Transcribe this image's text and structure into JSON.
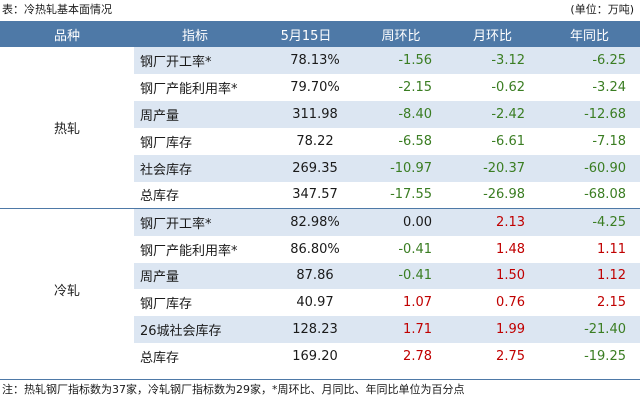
{
  "title": "表：冷热轧基本面情况",
  "unit": "(单位：万吨)",
  "headers": [
    "品种",
    "指标",
    "5月15日",
    "周环比",
    "月环比",
    "年同比"
  ],
  "groups": [
    {
      "variety": "热轧",
      "rows": [
        {
          "indicator": "钢厂开工率*",
          "value": "78.13%",
          "wow": "-1.56",
          "mom": "-3.12",
          "yoy": "-6.25"
        },
        {
          "indicator": "钢厂产能利用率*",
          "value": "79.70%",
          "wow": "-2.15",
          "mom": "-0.62",
          "yoy": "-3.24"
        },
        {
          "indicator": "周产量",
          "value": "311.98",
          "wow": "-8.40",
          "mom": "-2.42",
          "yoy": "-12.68"
        },
        {
          "indicator": "钢厂库存",
          "value": "78.22",
          "wow": "-6.58",
          "mom": "-6.61",
          "yoy": "-7.18"
        },
        {
          "indicator": "社会库存",
          "value": "269.35",
          "wow": "-10.97",
          "mom": "-20.37",
          "yoy": "-60.90"
        },
        {
          "indicator": "总库存",
          "value": "347.57",
          "wow": "-17.55",
          "mom": "-26.98",
          "yoy": "-68.08"
        }
      ]
    },
    {
      "variety": "冷轧",
      "rows": [
        {
          "indicator": "钢厂开工率*",
          "value": "82.98%",
          "wow": "0.00",
          "mom": "2.13",
          "yoy": "-4.25"
        },
        {
          "indicator": "钢厂产能利用率*",
          "value": "86.80%",
          "wow": "-0.41",
          "mom": "1.48",
          "yoy": "1.11"
        },
        {
          "indicator": "周产量",
          "value": "87.86",
          "wow": "-0.41",
          "mom": "1.50",
          "yoy": "1.12"
        },
        {
          "indicator": "钢厂库存",
          "value": "40.97",
          "wow": "1.07",
          "mom": "0.76",
          "yoy": "2.15"
        },
        {
          "indicator": "26城社会库存",
          "value": "128.23",
          "wow": "1.71",
          "mom": "1.99",
          "yoy": "-21.40"
        },
        {
          "indicator": "总库存",
          "value": "169.20",
          "wow": "2.78",
          "mom": "2.75",
          "yoy": "-19.25"
        }
      ]
    }
  ],
  "footnote": "注：热轧钢厂指标数为37家，冷轧钢厂指标数为29家，*周环比、月同比、年同比单位为百分点",
  "colors": {
    "header_bg": "#4e79a7",
    "shade": "#dce6f2",
    "positive": "#c00000",
    "negative": "#3a7d22"
  }
}
